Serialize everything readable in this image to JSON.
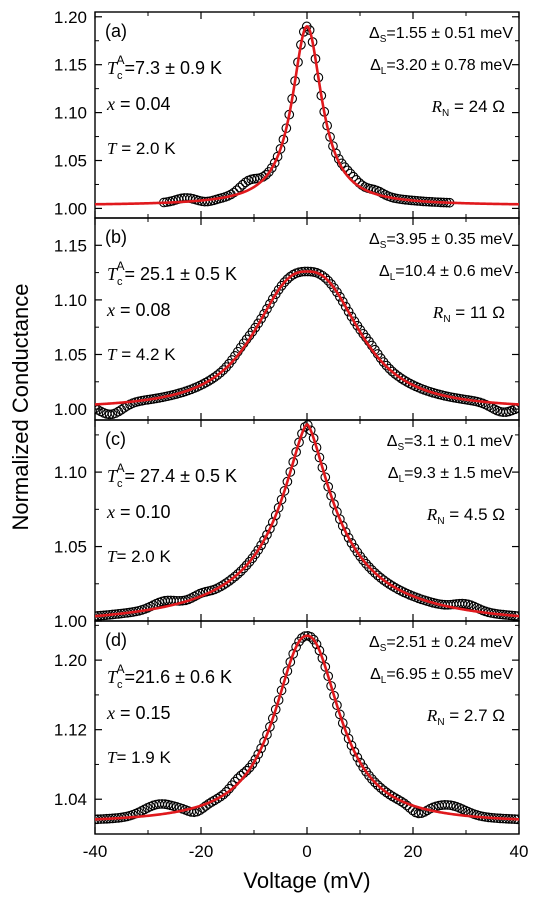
{
  "figure": {
    "ylabel": "Normalized Conductance",
    "xlabel": "Voltage (mV)"
  },
  "chart_data": [
    {
      "type": "scatter",
      "panel_label": "(a)",
      "tc": {
        "sym": "T",
        "sub": "c",
        "sup": "A",
        "value": "=7.3 ± 0.9 K"
      },
      "x_text": {
        "sym": "x",
        "value": " = 0.04"
      },
      "t_text": {
        "sym": "T",
        "value": " = 2.0 K"
      },
      "gap_s": {
        "sym": "Δ",
        "sub": "S",
        "value": "=1.55 ± 0.51 meV"
      },
      "gap_l": {
        "sym": "Δ",
        "sub": "L",
        "value": "=3.20 ± 0.78 meV"
      },
      "rn": {
        "sym": "R",
        "sub": "N",
        "value": " = 24 Ω"
      },
      "xlim": [
        -40,
        40
      ],
      "ylim": [
        0.99,
        1.205
      ],
      "yticks": [
        "1.00",
        "1.05",
        "1.10",
        "1.15",
        "1.20"
      ],
      "yticks_values": [
        1.0,
        1.05,
        1.1,
        1.15,
        1.2
      ],
      "xticks_values": [
        -40,
        -20,
        0,
        20,
        40
      ],
      "data_range": [
        -27,
        27
      ],
      "fit": {
        "base": 1.003,
        "peak": 1.19,
        "w": 3.4,
        "shoulder": 0.0,
        "sw": 8,
        "tail": 0.0,
        "tw": 30
      },
      "data_bumps": [
        [
          -23,
          0.004,
          2.5
        ],
        [
          -11,
          0.01,
          2.5
        ],
        [
          8,
          0.006,
          2.5
        ],
        [
          13,
          0.004,
          2
        ],
        [
          -19,
          -0.002,
          2
        ]
      ],
      "series": [
        {
          "name": "",
          "marker": "open-circle",
          "color": "#000000"
        },
        {
          "name": "",
          "line": "fit",
          "color": "#e0191d"
        }
      ]
    },
    {
      "type": "scatter",
      "panel_label": "(b)",
      "tc": {
        "sym": "T",
        "sub": "c",
        "sup": "A",
        "value": "= 25.1 ± 0.5 K"
      },
      "x_text": {
        "sym": "x",
        "value": " = 0.08"
      },
      "t_text": {
        "sym": "T",
        "value": " = 4.2 K"
      },
      "gap_s": {
        "sym": "Δ",
        "sub": "S",
        "value": "=3.95 ± 0.35 meV"
      },
      "gap_l": {
        "sym": "Δ",
        "sub": "L",
        "value": "=10.4 ± 0.6 meV"
      },
      "rn": {
        "sym": "R",
        "sub": "N",
        "value": " = 11 Ω"
      },
      "xlim": [
        -40,
        40
      ],
      "ylim": [
        0.99,
        1.175
      ],
      "yticks": [
        "1.00",
        "1.05",
        "1.10",
        "1.15"
      ],
      "yticks_values": [
        1.0,
        1.05,
        1.1,
        1.15
      ],
      "xticks_values": [
        -40,
        -20,
        0,
        20,
        40
      ],
      "data_range": [
        -40,
        40
      ],
      "fit": {
        "base": 1.0,
        "peak": 1.126,
        "w": 5.5,
        "shoulder": 0.0,
        "sw": 10,
        "tail": 0.0,
        "tw": 30,
        "mode": "flat"
      },
      "data_bumps": [
        [
          -37,
          -0.01,
          3
        ],
        [
          37,
          -0.008,
          3
        ],
        [
          -12,
          0.004,
          2.5
        ],
        [
          12,
          0.004,
          2.5
        ]
      ],
      "series": [
        {
          "name": "",
          "marker": "open-circle",
          "color": "#000000"
        },
        {
          "name": "",
          "line": "fit",
          "color": "#e0191d"
        }
      ]
    },
    {
      "type": "scatter",
      "panel_label": "(c)",
      "tc": {
        "sym": "T",
        "sub": "c",
        "sup": "A",
        "value": "= 27.4 ± 0.5 K"
      },
      "x_text": {
        "sym": "x",
        "value": " = 0.10"
      },
      "t_text": {
        "sym": "T",
        "value": "= 2.0 K"
      },
      "gap_s": {
        "sym": "Δ",
        "sub": "S",
        "value": "=3.1 ± 0.1 meV"
      },
      "gap_l": {
        "sym": "Δ",
        "sub": "L",
        "value": "=9.3 ± 1.5 meV"
      },
      "rn": {
        "sym": "R",
        "sub": "N",
        "value": " = 4.5 Ω"
      },
      "xlim": [
        -40,
        40
      ],
      "ylim": [
        1.0,
        1.135
      ],
      "yticks": [
        "1.00",
        "1.05",
        "1.10"
      ],
      "yticks_values": [
        1.0,
        1.05,
        1.1
      ],
      "xticks_values": [
        -40,
        -20,
        0,
        20,
        40
      ],
      "data_range": [
        -40,
        40
      ],
      "fit": {
        "base": 0.995,
        "peak": 1.132,
        "w": 6.5,
        "shoulder": 0.0,
        "sw": 10,
        "tail": 0.0,
        "tw": 30,
        "mode": "tent"
      },
      "data_bumps": [
        [
          -27,
          0.004,
          3
        ],
        [
          -20,
          0.002,
          2
        ],
        [
          30,
          0.004,
          3
        ]
      ],
      "series": [
        {
          "name": "",
          "marker": "open-circle",
          "color": "#000000"
        },
        {
          "name": "",
          "line": "fit",
          "color": "#e0191d"
        }
      ]
    },
    {
      "type": "scatter",
      "panel_label": "(d)",
      "tc": {
        "sym": "T",
        "sub": "c",
        "sup": "A",
        "value": "=21.6 ± 0.6 K"
      },
      "x_text": {
        "sym": "x",
        "value": " = 0.15"
      },
      "t_text": {
        "sym": "T",
        "value": "= 1.9 K"
      },
      "gap_s": {
        "sym": "Δ",
        "sub": "S",
        "value": "=2.51 ± 0.24 meV"
      },
      "gap_l": {
        "sym": "Δ",
        "sub": "L",
        "value": "=6.95 ± 0.55 meV"
      },
      "rn": {
        "sym": "R",
        "sub": "N",
        "value": " = 2.7 Ω"
      },
      "xlim": [
        -40,
        40
      ],
      "ylim": [
        1.0,
        1.245
      ],
      "yticks": [
        "1.04",
        "1.12",
        "1.20"
      ],
      "yticks_values": [
        1.04,
        1.12,
        1.2
      ],
      "xticks_values": [
        -40,
        -20,
        0,
        20,
        40
      ],
      "xticks": [
        "-40",
        "-20",
        "0",
        "20",
        "40"
      ],
      "data_range": [
        -40,
        40
      ],
      "fit": {
        "base": 1.012,
        "peak": 1.228,
        "w": 6.0,
        "shoulder": 0.0,
        "sw": 10,
        "tail": 0.0,
        "tw": 30,
        "mode": "bell"
      },
      "data_bumps": [
        [
          -28,
          0.012,
          4
        ],
        [
          27,
          0.01,
          4
        ],
        [
          -21,
          -0.006,
          2
        ],
        [
          21,
          -0.008,
          2
        ],
        [
          -13,
          0.006,
          2
        ]
      ],
      "series": [
        {
          "name": "",
          "marker": "open-circle",
          "color": "#000000"
        },
        {
          "name": "",
          "line": "fit",
          "color": "#e0191d"
        }
      ]
    }
  ]
}
